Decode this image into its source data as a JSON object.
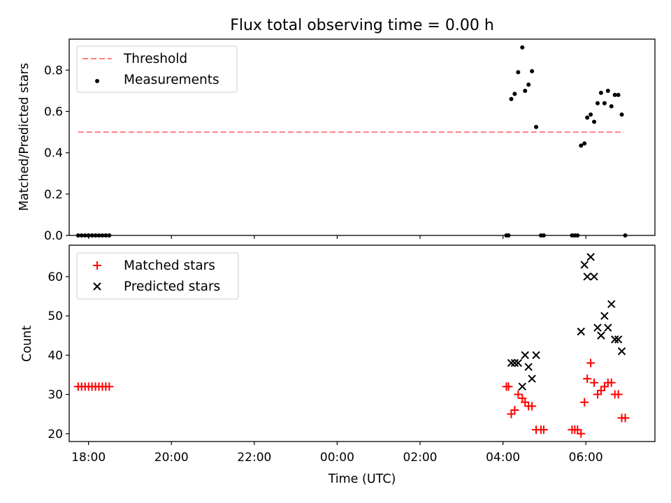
{
  "chart_data": [
    {
      "type": "scatter",
      "title": "Flux total observing time = 0.00 h",
      "xlabel": "",
      "ylabel": "Matched/Predicted stars",
      "xlim": [
        "17:32",
        "07:40"
      ],
      "ylim": [
        0,
        0.95
      ],
      "yticks": [
        "0.0",
        "0.2",
        "0.4",
        "0.6",
        "0.8"
      ],
      "ytick_values": [
        0,
        0.2,
        0.4,
        0.6,
        0.8
      ],
      "legend": "top-left",
      "threshold": {
        "name": "Threshold",
        "color": "#ff7f7f",
        "value": 0.5,
        "x": [
          "17:45",
          "06:55"
        ]
      },
      "series": [
        {
          "name": "Measurements",
          "color": "#000000",
          "marker": "dot",
          "points": [
            [
              "17:45",
              0
            ],
            [
              "17:50",
              0
            ],
            [
              "17:55",
              0
            ],
            [
              "18:00",
              0
            ],
            [
              "18:05",
              0
            ],
            [
              "18:10",
              0
            ],
            [
              "18:15",
              0
            ],
            [
              "18:20",
              0
            ],
            [
              "18:25",
              0
            ],
            [
              "18:30",
              0
            ],
            [
              "04:05",
              0
            ],
            [
              "04:08",
              0
            ],
            [
              "04:12",
              0.66
            ],
            [
              "04:17",
              0.685
            ],
            [
              "04:22",
              0.79
            ],
            [
              "04:28",
              0.91
            ],
            [
              "04:32",
              0.7
            ],
            [
              "04:37",
              0.73
            ],
            [
              "04:42",
              0.795
            ],
            [
              "04:48",
              0.525
            ],
            [
              "04:55",
              0
            ],
            [
              "04:59",
              0
            ],
            [
              "05:40",
              0
            ],
            [
              "05:44",
              0
            ],
            [
              "05:48",
              0
            ],
            [
              "05:53",
              0.435
            ],
            [
              "05:58",
              0.445
            ],
            [
              "06:02",
              0.57
            ],
            [
              "06:07",
              0.585
            ],
            [
              "06:12",
              0.55
            ],
            [
              "06:17",
              0.64
            ],
            [
              "06:22",
              0.69
            ],
            [
              "06:27",
              0.64
            ],
            [
              "06:32",
              0.7
            ],
            [
              "06:37",
              0.625
            ],
            [
              "06:42",
              0.68
            ],
            [
              "06:47",
              0.68
            ],
            [
              "06:52",
              0.585
            ],
            [
              "06:57",
              0
            ]
          ]
        }
      ]
    },
    {
      "type": "scatter",
      "title": "",
      "xlabel": "Time (UTC)",
      "ylabel": "Count",
      "xlim": [
        "17:32",
        "07:40"
      ],
      "ylim": [
        18,
        68
      ],
      "yticks": [
        "20",
        "30",
        "40",
        "50",
        "60"
      ],
      "ytick_values": [
        20,
        30,
        40,
        50,
        60
      ],
      "xticks": [
        "18:00",
        "20:00",
        "22:00",
        "00:00",
        "02:00",
        "04:00",
        "06:00"
      ],
      "legend": "top-left",
      "series": [
        {
          "name": "Matched stars",
          "color": "#ff0000",
          "marker": "plus",
          "points": [
            [
              "17:45",
              32
            ],
            [
              "17:50",
              32
            ],
            [
              "17:55",
              32
            ],
            [
              "18:00",
              32
            ],
            [
              "18:05",
              32
            ],
            [
              "18:10",
              32
            ],
            [
              "18:15",
              32
            ],
            [
              "18:20",
              32
            ],
            [
              "18:25",
              32
            ],
            [
              "18:30",
              32
            ],
            [
              "04:05",
              32
            ],
            [
              "04:08",
              32
            ],
            [
              "04:12",
              25
            ],
            [
              "04:17",
              26
            ],
            [
              "04:22",
              30
            ],
            [
              "04:28",
              29
            ],
            [
              "04:32",
              28
            ],
            [
              "04:37",
              27
            ],
            [
              "04:42",
              27
            ],
            [
              "04:48",
              21
            ],
            [
              "04:55",
              21
            ],
            [
              "04:59",
              21
            ],
            [
              "05:40",
              21
            ],
            [
              "05:44",
              21
            ],
            [
              "05:48",
              21
            ],
            [
              "05:53",
              20
            ],
            [
              "05:58",
              28
            ],
            [
              "06:02",
              34
            ],
            [
              "06:07",
              38
            ],
            [
              "06:12",
              33
            ],
            [
              "06:17",
              30
            ],
            [
              "06:22",
              31
            ],
            [
              "06:27",
              32
            ],
            [
              "06:32",
              33
            ],
            [
              "06:37",
              33
            ],
            [
              "06:42",
              30
            ],
            [
              "06:47",
              30
            ],
            [
              "06:52",
              24
            ],
            [
              "06:57",
              24
            ]
          ]
        },
        {
          "name": "Predicted stars",
          "color": "#000000",
          "marker": "x",
          "points": [
            [
              "04:12",
              38
            ],
            [
              "04:17",
              38
            ],
            [
              "04:22",
              38
            ],
            [
              "04:28",
              32
            ],
            [
              "04:32",
              40
            ],
            [
              "04:37",
              37
            ],
            [
              "04:42",
              34
            ],
            [
              "04:48",
              40
            ],
            [
              "05:53",
              46
            ],
            [
              "05:58",
              63
            ],
            [
              "06:02",
              60
            ],
            [
              "06:07",
              65
            ],
            [
              "06:12",
              60
            ],
            [
              "06:17",
              47
            ],
            [
              "06:22",
              45
            ],
            [
              "06:27",
              50
            ],
            [
              "06:32",
              47
            ],
            [
              "06:37",
              53
            ],
            [
              "06:42",
              44
            ],
            [
              "06:47",
              44
            ],
            [
              "06:52",
              41
            ]
          ]
        }
      ]
    }
  ]
}
